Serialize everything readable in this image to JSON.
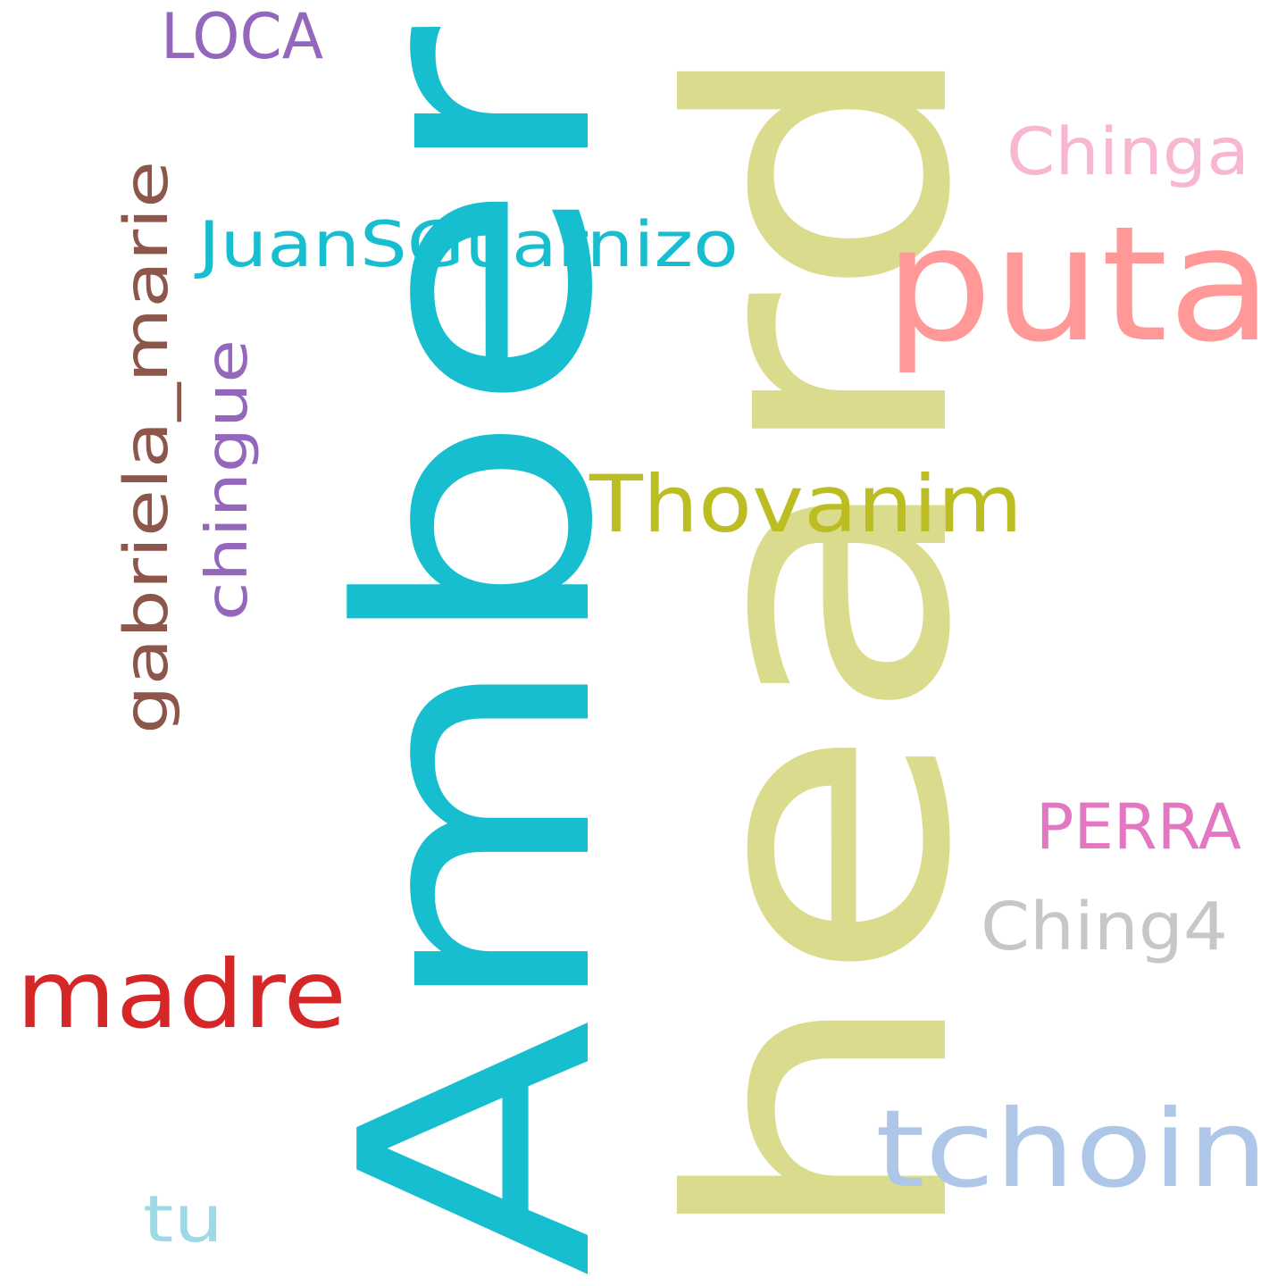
{
  "words": [
    {
      "text": "Amber",
      "color": "#17becf",
      "vertical": true
    },
    {
      "text": "heard",
      "color": "#dbdb8d",
      "vertical": true
    },
    {
      "text": "puta",
      "color": "#ff9896",
      "vertical": false
    },
    {
      "text": "Chinga",
      "color": "#f7b6d2",
      "vertical": false
    },
    {
      "text": "LOCA",
      "color": "#9467bd",
      "vertical": false
    },
    {
      "text": "JuanSGuarnizo",
      "color": "#17becf",
      "vertical": false
    },
    {
      "text": "gabriela_marie",
      "color": "#8c564b",
      "vertical": true
    },
    {
      "text": "chingue",
      "color": "#9467bd",
      "vertical": true
    },
    {
      "text": "Thovanim",
      "color": "#bcbd22",
      "vertical": false
    },
    {
      "text": "PERRA",
      "color": "#e377c2",
      "vertical": false
    },
    {
      "text": "Ching4",
      "color": "#c7c7c7",
      "vertical": false
    },
    {
      "text": "madre",
      "color": "#d62728",
      "vertical": false
    },
    {
      "text": "tchoin",
      "color": "#aec7e8",
      "vertical": false
    },
    {
      "text": "tu",
      "color": "#9edae5",
      "vertical": false
    }
  ]
}
